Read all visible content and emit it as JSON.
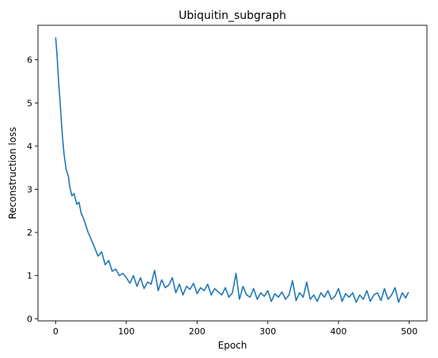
{
  "chart_data": {
    "type": "line",
    "title": "Ubiquitin_subgraph",
    "xlabel": "Epoch",
    "ylabel": "Reconstruction loss",
    "xlim": [
      -25,
      525
    ],
    "ylim": [
      -0.05,
      6.8
    ],
    "xticks": [
      0,
      100,
      200,
      300,
      400,
      500
    ],
    "yticks": [
      0,
      1,
      2,
      3,
      4,
      5,
      6
    ],
    "xtick_labels": [
      "0",
      "100",
      "200",
      "300",
      "400",
      "500"
    ],
    "ytick_labels": [
      "0",
      "1",
      "2",
      "3",
      "4",
      "5",
      "6"
    ],
    "grid": false,
    "series": [
      {
        "color": "#1f77b4",
        "x": [
          0,
          2,
          4,
          6,
          8,
          10,
          12,
          15,
          18,
          20,
          23,
          26,
          30,
          33,
          36,
          40,
          43,
          46,
          50,
          55,
          60,
          65,
          70,
          75,
          80,
          85,
          90,
          95,
          100,
          105,
          110,
          115,
          120,
          125,
          130,
          135,
          140,
          145,
          150,
          155,
          160,
          165,
          170,
          175,
          180,
          185,
          190,
          195,
          200,
          205,
          210,
          215,
          220,
          225,
          230,
          235,
          240,
          245,
          250,
          255,
          260,
          265,
          270,
          275,
          280,
          285,
          290,
          295,
          300,
          305,
          310,
          315,
          320,
          325,
          330,
          335,
          340,
          345,
          350,
          355,
          360,
          365,
          370,
          375,
          380,
          385,
          390,
          395,
          400,
          405,
          410,
          415,
          420,
          425,
          430,
          435,
          440,
          445,
          450,
          455,
          460,
          465,
          470,
          475,
          480,
          485,
          490,
          495,
          499
        ],
        "values": [
          6.52,
          6.1,
          5.55,
          5.1,
          4.6,
          4.15,
          3.8,
          3.45,
          3.3,
          3.05,
          2.85,
          2.9,
          2.65,
          2.7,
          2.45,
          2.3,
          2.15,
          2.0,
          1.85,
          1.65,
          1.45,
          1.55,
          1.25,
          1.35,
          1.1,
          1.15,
          1.0,
          1.05,
          0.95,
          0.82,
          1.0,
          0.75,
          0.95,
          0.7,
          0.85,
          0.8,
          1.12,
          0.65,
          0.9,
          0.72,
          0.78,
          0.95,
          0.6,
          0.8,
          0.55,
          0.75,
          0.68,
          0.82,
          0.58,
          0.72,
          0.65,
          0.8,
          0.55,
          0.7,
          0.62,
          0.55,
          0.72,
          0.5,
          0.6,
          1.05,
          0.45,
          0.75,
          0.55,
          0.5,
          0.7,
          0.45,
          0.6,
          0.52,
          0.65,
          0.4,
          0.58,
          0.5,
          0.62,
          0.45,
          0.55,
          0.88,
          0.42,
          0.6,
          0.5,
          0.85,
          0.45,
          0.55,
          0.4,
          0.6,
          0.5,
          0.65,
          0.45,
          0.52,
          0.7,
          0.4,
          0.58,
          0.5,
          0.6,
          0.38,
          0.55,
          0.45,
          0.65,
          0.4,
          0.55,
          0.6,
          0.42,
          0.7,
          0.45,
          0.55,
          0.72,
          0.38,
          0.6,
          0.48,
          0.62
        ]
      }
    ]
  }
}
